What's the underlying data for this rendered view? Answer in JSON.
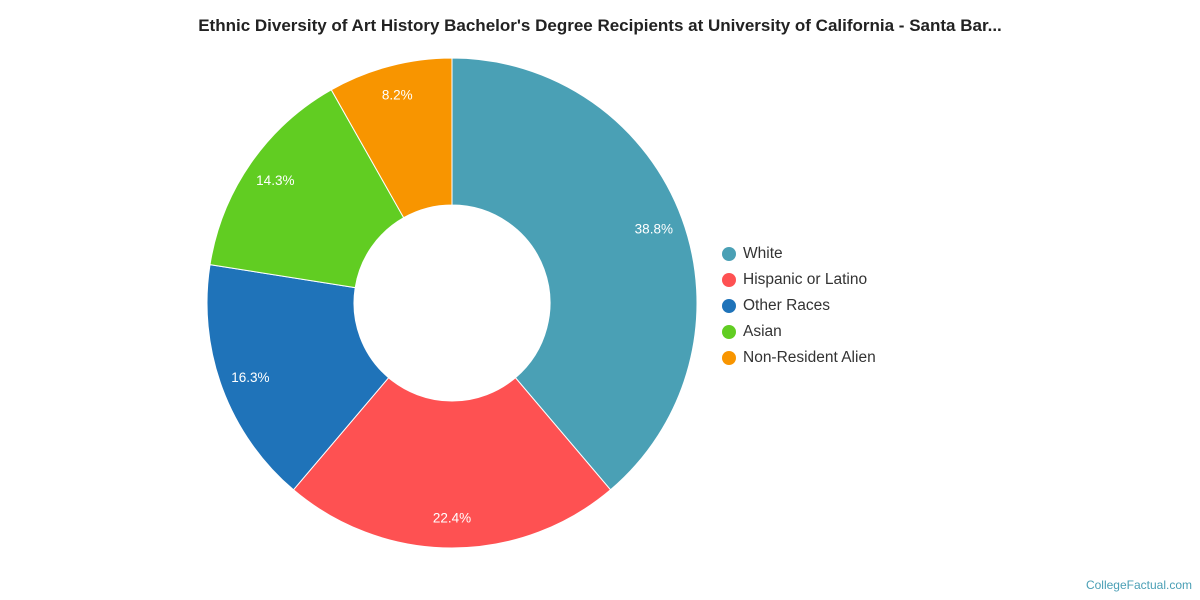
{
  "chart_data": {
    "type": "pie",
    "title": "Ethnic Diversity of Art History Bachelor's Degree Recipients at University of California - Santa Bar...",
    "donut": true,
    "legend_position": "right",
    "slices": [
      {
        "label": "White",
        "value": 38.8,
        "display": "38.8%",
        "color": "#4aa0b5"
      },
      {
        "label": "Hispanic or Latino",
        "value": 22.4,
        "display": "22.4%",
        "color": "#fe5152"
      },
      {
        "label": "Other Races",
        "value": 16.3,
        "display": "16.3%",
        "color": "#1f73b9"
      },
      {
        "label": "Asian",
        "value": 14.3,
        "display": "14.3%",
        "color": "#61cd22"
      },
      {
        "label": "Non-Resident Alien",
        "value": 8.2,
        "display": "8.2%",
        "color": "#f89500"
      }
    ]
  },
  "credit": "CollegeFactual.com"
}
